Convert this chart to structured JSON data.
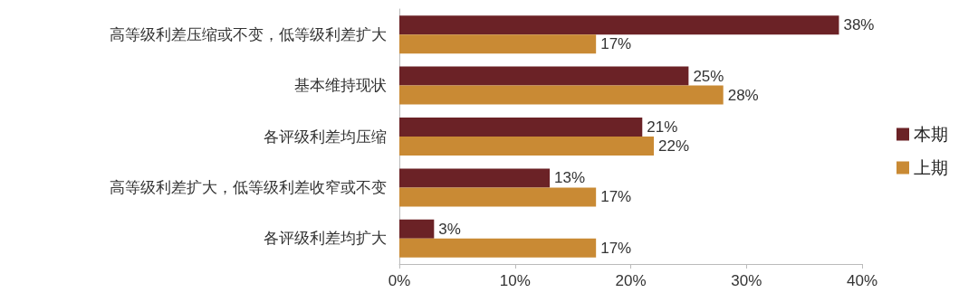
{
  "chart_data": {
    "type": "bar",
    "orientation": "horizontal",
    "categories": [
      "高等级利差压缩或不变，低等级利差扩大",
      "基本维持现状",
      "各评级利差均压缩",
      "高等级利差扩大，低等级利差收窄或不变",
      "各评级利差均扩大"
    ],
    "series": [
      {
        "name": "本期",
        "color": "#6b2226",
        "values": [
          38,
          25,
          21,
          13,
          3
        ],
        "value_labels": [
          "38%",
          "25%",
          "21%",
          "13%",
          "3%"
        ]
      },
      {
        "name": "上期",
        "color": "#c98a34",
        "values": [
          17,
          28,
          22,
          17,
          17
        ],
        "value_labels": [
          "17%",
          "28%",
          "22%",
          "17%",
          "17%"
        ]
      }
    ],
    "xlim": [
      0,
      40
    ],
    "xticks": [
      {
        "value": 0,
        "label": "0%"
      },
      {
        "value": 10,
        "label": "10%"
      },
      {
        "value": 20,
        "label": "20%"
      },
      {
        "value": 30,
        "label": "30%"
      },
      {
        "value": 40,
        "label": "40%"
      }
    ],
    "grid": false,
    "legend": "right"
  }
}
